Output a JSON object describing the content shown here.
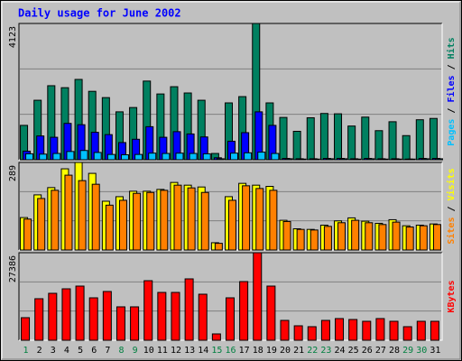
{
  "chart_data": [
    {
      "type": "bar",
      "title": "Daily usage for June 2002",
      "ylim": [
        0,
        4123
      ],
      "yticks": [
        4123
      ],
      "legend_separator": " / ",
      "series": [
        {
          "name": "Hits",
          "color": "#008060",
          "values": [
            1040,
            1800,
            2240,
            2180,
            2430,
            2070,
            1880,
            1450,
            1580,
            2380,
            1990,
            2210,
            2020,
            1800,
            190,
            1720,
            1910,
            4123,
            1720,
            1280,
            860,
            1270,
            1400,
            1390,
            1020,
            1290,
            880,
            1150,
            730,
            1210,
            1250
          ]
        },
        {
          "name": "Files",
          "color": "#0000ff",
          "values": [
            260,
            720,
            680,
            1100,
            1060,
            830,
            760,
            520,
            620,
            1000,
            680,
            850,
            780,
            690,
            60,
            560,
            820,
            1450,
            1040,
            40,
            30,
            30,
            40,
            40,
            30,
            40,
            30,
            30,
            20,
            40,
            40
          ]
        },
        {
          "name": "Pages",
          "color": "#00c0ff",
          "values": [
            180,
            170,
            190,
            250,
            280,
            220,
            160,
            150,
            160,
            200,
            190,
            200,
            190,
            180,
            30,
            200,
            210,
            230,
            190,
            30,
            20,
            20,
            30,
            30,
            20,
            30,
            20,
            20,
            20,
            30,
            30
          ]
        }
      ]
    },
    {
      "type": "bar",
      "ylim": [
        0,
        289
      ],
      "yticks": [
        289
      ],
      "legend_separator": " / ",
      "series": [
        {
          "name": "Visits",
          "color": "#ffff00",
          "values": [
            107,
            182,
            206,
            268,
            289,
            253,
            161,
            176,
            194,
            194,
            200,
            223,
            214,
            208,
            24,
            176,
            220,
            214,
            210,
            98,
            70,
            68,
            82,
            96,
            106,
            95,
            88,
            100,
            80,
            82,
            86
          ]
        },
        {
          "name": "Sites",
          "color": "#ff8000",
          "values": [
            102,
            170,
            197,
            247,
            229,
            217,
            148,
            164,
            187,
            190,
            197,
            214,
            205,
            190,
            22,
            164,
            212,
            203,
            197,
            94,
            68,
            66,
            78,
            90,
            98,
            90,
            84,
            92,
            76,
            80,
            84
          ]
        }
      ]
    },
    {
      "type": "bar",
      "ylim": [
        0,
        27386
      ],
      "yticks": [
        27386
      ],
      "categories": [
        "1",
        "2",
        "3",
        "4",
        "5",
        "6",
        "7",
        "8",
        "9",
        "10",
        "11",
        "12",
        "13",
        "14",
        "15",
        "16",
        "17",
        "18",
        "19",
        "20",
        "21",
        "22",
        "23",
        "24",
        "25",
        "26",
        "27",
        "28",
        "29",
        "30",
        "31"
      ],
      "category_colors": [
        "#008040",
        "#000000",
        "#000000",
        "#000000",
        "#000000",
        "#000000",
        "#000000",
        "#008040",
        "#008040",
        "#000000",
        "#000000",
        "#000000",
        "#000000",
        "#000000",
        "#008040",
        "#008040",
        "#000000",
        "#000000",
        "#000000",
        "#000000",
        "#000000",
        "#008040",
        "#008040",
        "#000000",
        "#000000",
        "#000000",
        "#000000",
        "#000000",
        "#008040",
        "#008040",
        "#000000"
      ],
      "series": [
        {
          "name": "KBytes",
          "color": "#ff0000",
          "values": [
            7060,
            12990,
            14680,
            16090,
            16940,
            13270,
            15250,
            10450,
            10450,
            18630,
            14960,
            14960,
            19200,
            14400,
            1980,
            13270,
            18350,
            27386,
            16940,
            6210,
            4520,
            4240,
            6210,
            6780,
            6490,
            5930,
            6780,
            5930,
            4240,
            5930,
            5930
          ]
        }
      ]
    }
  ]
}
